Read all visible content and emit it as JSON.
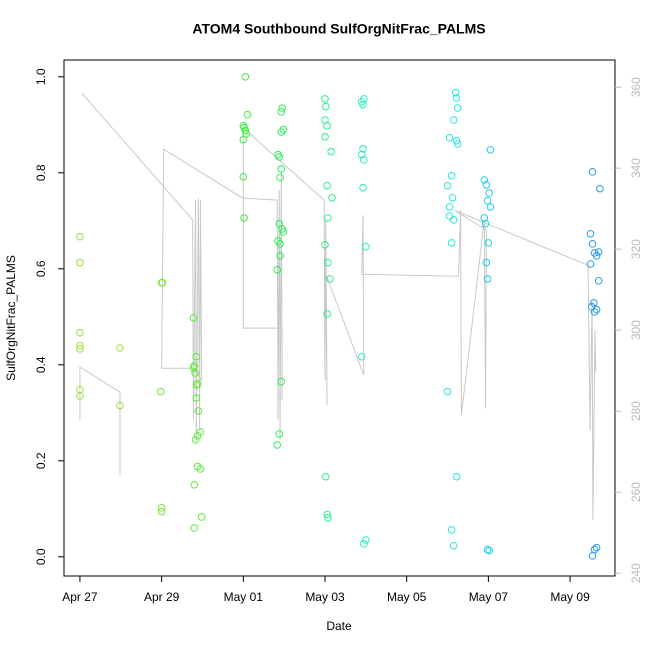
{
  "chart_data": {
    "type": "scatter",
    "title": "ATOM4 Southbound SulfOrgNitFrac_PALMS",
    "xlabel": "Date",
    "ylabel": "SulfOrgNitFrac_PALMS",
    "xlim": [
      26.61,
      40.1
    ],
    "xticks": [
      {
        "value": 27,
        "label": "Apr 27"
      },
      {
        "value": 29,
        "label": "Apr 29"
      },
      {
        "value": 31,
        "label": "May 01"
      },
      {
        "value": 33,
        "label": "May 03"
      },
      {
        "value": 35,
        "label": "May 05"
      },
      {
        "value": 37,
        "label": "May 07"
      },
      {
        "value": 39,
        "label": "May 09"
      }
    ],
    "ylim": [
      -0.04,
      1.035
    ],
    "yticks": [
      {
        "value": 0,
        "label": "0.0"
      },
      0.2,
      0.4,
      0.6,
      0.8,
      {
        "value": 1,
        "label": "1.0"
      }
    ],
    "y2lim": [
      239.3,
      366.7
    ],
    "y2ticks": [
      240,
      260,
      280,
      300,
      320,
      340,
      360
    ],
    "series": [
      {
        "type": "line",
        "axis": "y2",
        "color": "#c8c8c8",
        "x": [
          27,
          27,
          27.98,
          27.98,
          null,
          27.05,
          29.76,
          29.78,
          29.83,
          29.85,
          29.9,
          29.93,
          29.95,
          29.98,
          29.76,
          29.0,
          29.05,
          30.98,
          31.83,
          31.85,
          31.88,
          31.9,
          31.93,
          31.95,
          31.95,
          31.0,
          31.0,
          32.98,
          33.0,
          33.02,
          33.05,
          33.02,
          33.95,
          33.93,
          33.9,
          36.27,
          36.32,
          36.34,
          36.9,
          36.93,
          36.95,
          36.17,
          39.44,
          39.49,
          39.54,
          39.56,
          39.61,
          39.63
        ],
        "values": [
          277.8,
          290.9,
          284.7,
          264.2,
          null,
          358.5,
          327.2,
          277.8,
          332.1,
          272.8,
          332.6,
          275.3,
          332.1,
          287.7,
          290.6,
          290.6,
          344.7,
          332.6,
          332.1,
          277.8,
          334.6,
          272.8,
          339.5,
          282.7,
          300.5,
          300.5,
          349.9,
          332.1,
          287.7,
          327.2,
          281.5,
          313.8,
          288.9,
          328.4,
          313.8,
          313.3,
          329.6,
          279.0,
          327.2,
          280.7,
          324.7,
          329.6,
          316.0,
          275.3,
          307.4,
          253.1,
          300.0,
          289.6
        ]
      },
      {
        "color": "#99e03a",
        "x": [
          27,
          27,
          27,
          27,
          27,
          27,
          27,
          27.98,
          27.98
        ],
        "values": [
          0.667,
          0.613,
          0.467,
          0.44,
          0.433,
          0.348,
          0.335,
          0.435,
          0.315
        ]
      },
      {
        "color": "#7ae63a",
        "x": [
          29,
          29.02,
          28.98,
          29,
          29
        ],
        "values": [
          0.571,
          0.571,
          0.344,
          0.102,
          0.094
        ]
      },
      {
        "color": "#5cec3a",
        "x": [
          29.78,
          29.8,
          29.78,
          29.82,
          29.85,
          29.85,
          29.88,
          29.85,
          29.9,
          29.95,
          29.88,
          29.83,
          29.88,
          29.95,
          29.8,
          29.98,
          29.8
        ],
        "values": [
          0.498,
          0.398,
          0.394,
          0.383,
          0.417,
          0.358,
          0.36,
          0.331,
          0.304,
          0.26,
          0.252,
          0.244,
          0.188,
          0.183,
          0.15,
          0.083,
          0.06
        ]
      },
      {
        "color": "#3cf03e",
        "x": [
          31.05,
          31.1,
          31.0,
          31.02,
          31.05,
          31.07,
          31.0,
          31.0,
          31.02
        ],
        "values": [
          1.0,
          0.921,
          0.898,
          0.894,
          0.888,
          0.881,
          0.869,
          0.792,
          0.706
        ]
      },
      {
        "color": "#2ef05a",
        "x": [
          31.95,
          31.93,
          31.98,
          31.93,
          31.85,
          31.88,
          31.93,
          31.9,
          31.88,
          31.95,
          31.98,
          31.85,
          31.9,
          31.9,
          31.83,
          31.93,
          31.88,
          31.83
        ],
        "values": [
          0.935,
          0.927,
          0.89,
          0.885,
          0.838,
          0.833,
          0.808,
          0.79,
          0.694,
          0.683,
          0.677,
          0.658,
          0.652,
          0.627,
          0.598,
          0.365,
          0.256,
          0.233
        ]
      },
      {
        "color": "#2af08c",
        "x": [
          33.0,
          33.02,
          33.0,
          33.05,
          33.0,
          33.15,
          33.05,
          33.17,
          33.07,
          33.0,
          33.07,
          33.12,
          33.05,
          33.02,
          33.05,
          33.07
        ],
        "values": [
          0.954,
          0.938,
          0.91,
          0.898,
          0.875,
          0.844,
          0.773,
          0.748,
          0.706,
          0.65,
          0.613,
          0.579,
          0.506,
          0.167,
          0.088,
          0.081
        ]
      },
      {
        "color": "#28eec4",
        "x": [
          33.95,
          33.9,
          33.93,
          33.93,
          33.9,
          33.95,
          33.93,
          34.0,
          33.9,
          34.0,
          33.95
        ],
        "values": [
          0.954,
          0.948,
          0.942,
          0.85,
          0.838,
          0.827,
          0.769,
          0.646,
          0.417,
          0.035,
          0.027
        ]
      },
      {
        "color": "#26e6e6",
        "x": [
          36.2,
          36.22,
          36.25,
          36.15,
          36.05,
          36.22,
          36.25,
          36.1,
          36.0,
          36.12,
          36.05,
          36.05,
          36.15,
          36.1,
          36.0,
          36.22,
          36.1,
          36.15
        ],
        "values": [
          0.967,
          0.956,
          0.935,
          0.91,
          0.873,
          0.867,
          0.86,
          0.794,
          0.773,
          0.748,
          0.729,
          0.71,
          0.702,
          0.654,
          0.344,
          0.167,
          0.056,
          0.023
        ]
      },
      {
        "color": "#22cdee",
        "x": [
          37.05,
          36.9,
          36.95,
          37.02,
          36.98,
          37.05,
          36.9,
          36.93,
          37.0,
          36.95,
          36.98,
          36.98,
          37.02
        ],
        "values": [
          0.848,
          0.785,
          0.775,
          0.758,
          0.742,
          0.729,
          0.706,
          0.694,
          0.654,
          0.613,
          0.579,
          0.015,
          0.013
        ]
      },
      {
        "color": "#2a9be4",
        "x": [
          39.55,
          39.73,
          39.5,
          39.55,
          39.7,
          39.6,
          39.65,
          39.5,
          39.7,
          39.58,
          39.53,
          39.65,
          39.6,
          39.65,
          39.6,
          39.55
        ],
        "values": [
          0.802,
          0.767,
          0.673,
          0.652,
          0.635,
          0.633,
          0.627,
          0.61,
          0.575,
          0.529,
          0.521,
          0.515,
          0.51,
          0.019,
          0.015,
          0.002
        ]
      }
    ]
  }
}
